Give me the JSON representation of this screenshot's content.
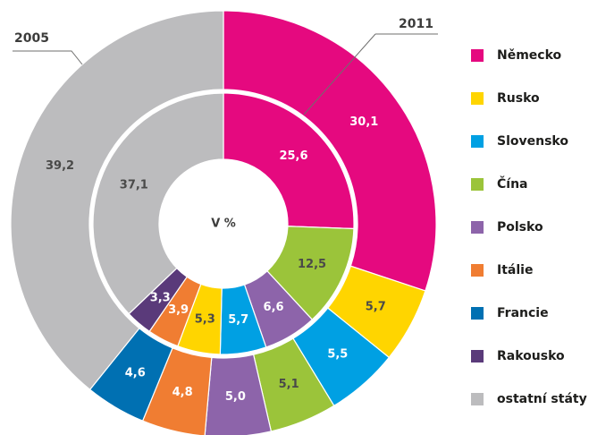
{
  "chart_data": {
    "type": "donut",
    "center_label": "V %",
    "legend": [
      {
        "name": "Německo",
        "color": "#e5097f"
      },
      {
        "name": "Rusko",
        "color": "#ffd500"
      },
      {
        "name": "Slovensko",
        "color": "#00a0e3"
      },
      {
        "name": "Čína",
        "color": "#9bc43a"
      },
      {
        "name": "Polsko",
        "color": "#8d64aa"
      },
      {
        "name": "Itálie",
        "color": "#f07d32"
      },
      {
        "name": "Francie",
        "color": "#0070b2"
      },
      {
        "name": "Rakousko",
        "color": "#5a3a7a"
      },
      {
        "name": "ostatní státy",
        "color": "#bcbcbe"
      }
    ],
    "series": [
      {
        "name": "2011",
        "categories": [
          "Německo",
          "Rusko",
          "Slovensko",
          "Čína",
          "Polsko",
          "Itálie",
          "Francie",
          "ostatní státy"
        ],
        "values": [
          30.1,
          5.7,
          5.5,
          5.1,
          5.0,
          4.8,
          4.6,
          39.2
        ],
        "value_labels": [
          "30,1",
          "5,7",
          "5,5",
          "5,1",
          "5,0",
          "4,8",
          "4,6",
          "39,2"
        ]
      },
      {
        "name": "2005",
        "categories": [
          "Německo",
          "Čína",
          "Polsko",
          "Slovensko",
          "Rusko",
          "Itálie",
          "Rakousko",
          "ostatní státy"
        ],
        "values": [
          25.6,
          12.5,
          6.6,
          5.7,
          5.3,
          3.9,
          3.3,
          37.1
        ],
        "value_labels": [
          "25,6",
          "12,5",
          "6,6",
          "5,7",
          "5,3",
          "3,9",
          "3,3",
          "37,1"
        ]
      }
    ]
  }
}
